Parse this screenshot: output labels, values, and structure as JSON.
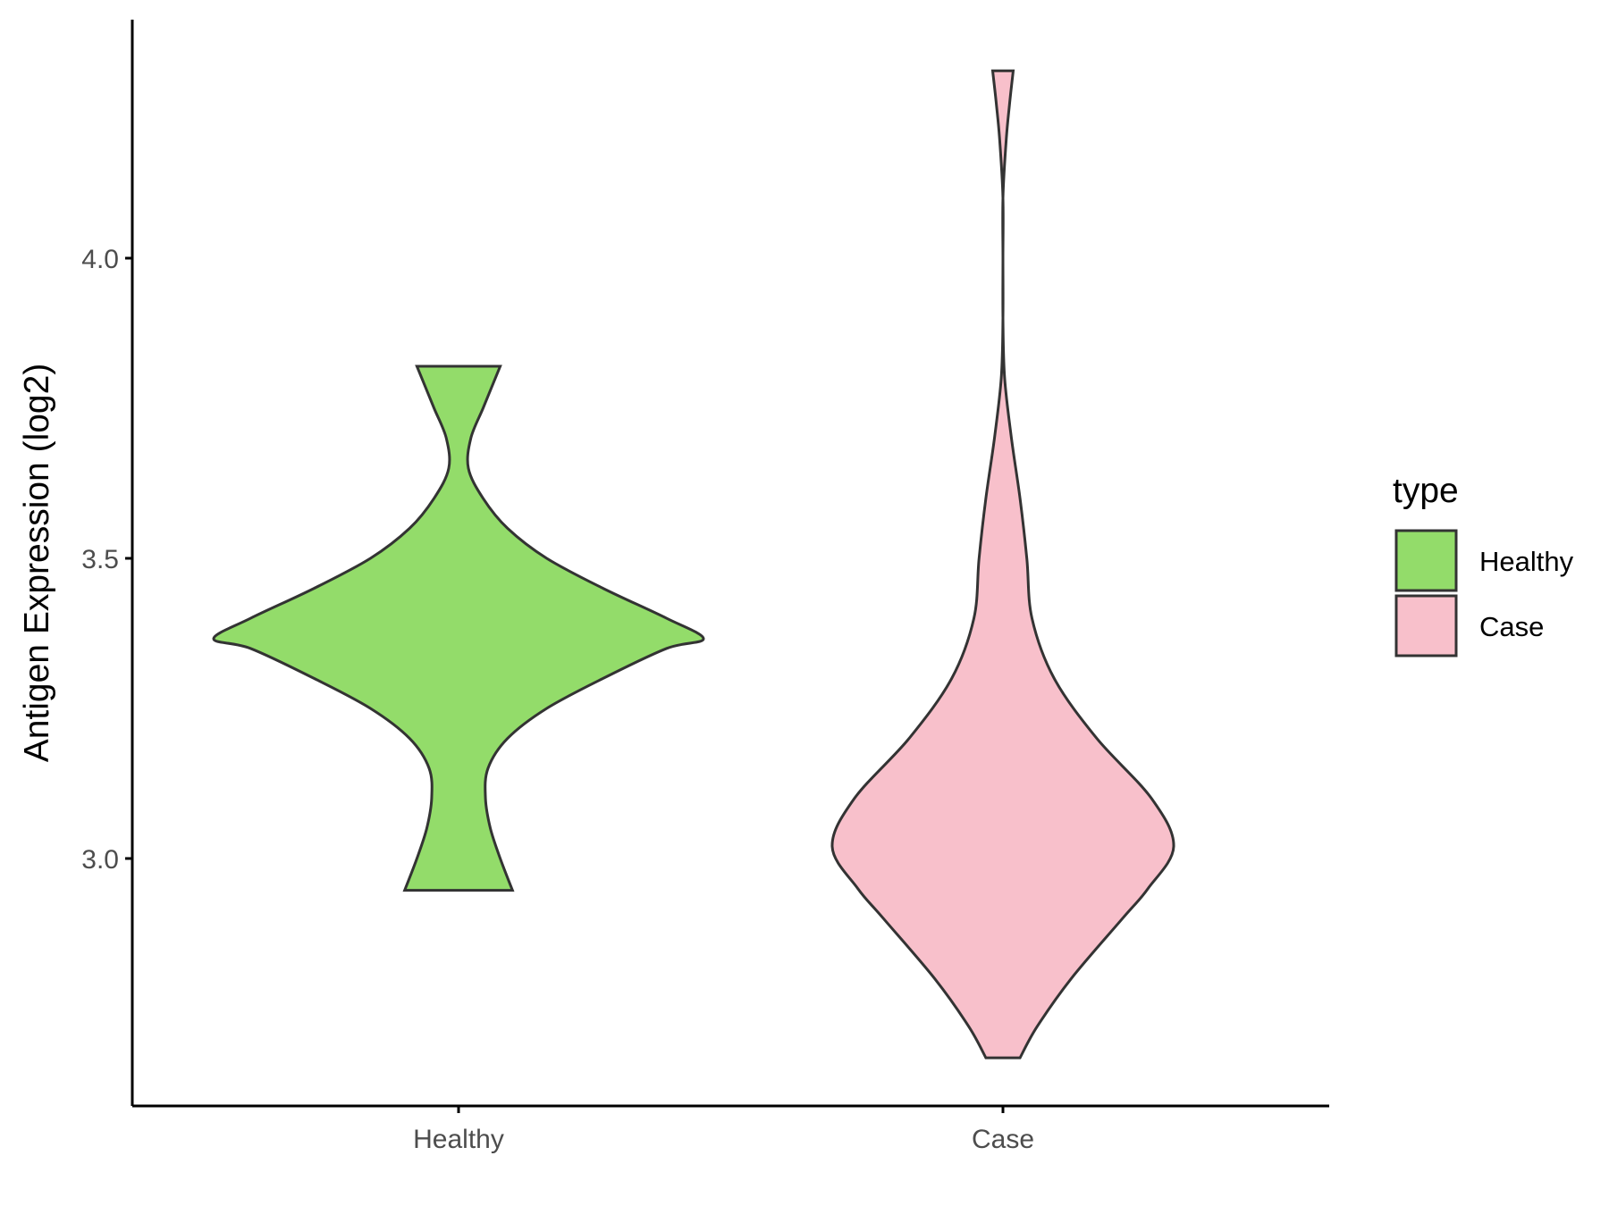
{
  "chart_data": {
    "type": "violin",
    "ylabel": "Antigen Expression (log2)",
    "xlabel": "",
    "title": "",
    "ylim": [
      2.62,
      4.42
    ],
    "yticks": [
      3.0,
      3.5,
      4.0
    ],
    "yticklabels": [
      "3.0",
      "3.5",
      "4.0"
    ],
    "categories": [
      "Healthy",
      "Case"
    ],
    "legend": {
      "title": "type",
      "position": "right",
      "entries": [
        "Healthy",
        "Case"
      ]
    },
    "series": [
      {
        "name": "Healthy",
        "color": "#93dc6a",
        "min": 2.947,
        "max": 3.82,
        "profile": [
          [
            2.947,
            0.22
          ],
          [
            3.0,
            0.17
          ],
          [
            3.05,
            0.13
          ],
          [
            3.1,
            0.11
          ],
          [
            3.15,
            0.12
          ],
          [
            3.2,
            0.2
          ],
          [
            3.25,
            0.36
          ],
          [
            3.3,
            0.59
          ],
          [
            3.35,
            0.85
          ],
          [
            3.366,
            1.0
          ],
          [
            3.4,
            0.85
          ],
          [
            3.45,
            0.59
          ],
          [
            3.5,
            0.36
          ],
          [
            3.55,
            0.2
          ],
          [
            3.6,
            0.1
          ],
          [
            3.65,
            0.04
          ],
          [
            3.7,
            0.05
          ],
          [
            3.75,
            0.1
          ],
          [
            3.8,
            0.15
          ],
          [
            3.82,
            0.17
          ]
        ]
      },
      {
        "name": "Case",
        "color": "#f8c0cb",
        "min": 2.668,
        "max": 4.312,
        "profile": [
          [
            2.668,
            0.1
          ],
          [
            2.72,
            0.2
          ],
          [
            2.8,
            0.4
          ],
          [
            2.9,
            0.7
          ],
          [
            2.95,
            0.85
          ],
          [
            3.02,
            1.0
          ],
          [
            3.1,
            0.87
          ],
          [
            3.2,
            0.55
          ],
          [
            3.3,
            0.3
          ],
          [
            3.4,
            0.17
          ],
          [
            3.5,
            0.14
          ],
          [
            3.6,
            0.1
          ],
          [
            3.7,
            0.05
          ],
          [
            3.8,
            0.01
          ],
          [
            3.9,
            0.0
          ],
          [
            4.0,
            0.0
          ],
          [
            4.1,
            0.0
          ],
          [
            4.2,
            0.02
          ],
          [
            4.26,
            0.04
          ],
          [
            4.312,
            0.06
          ]
        ]
      }
    ],
    "colors": {
      "outline": "#333333",
      "axis": "#000000",
      "tick_text": "#4d4d4d"
    }
  }
}
